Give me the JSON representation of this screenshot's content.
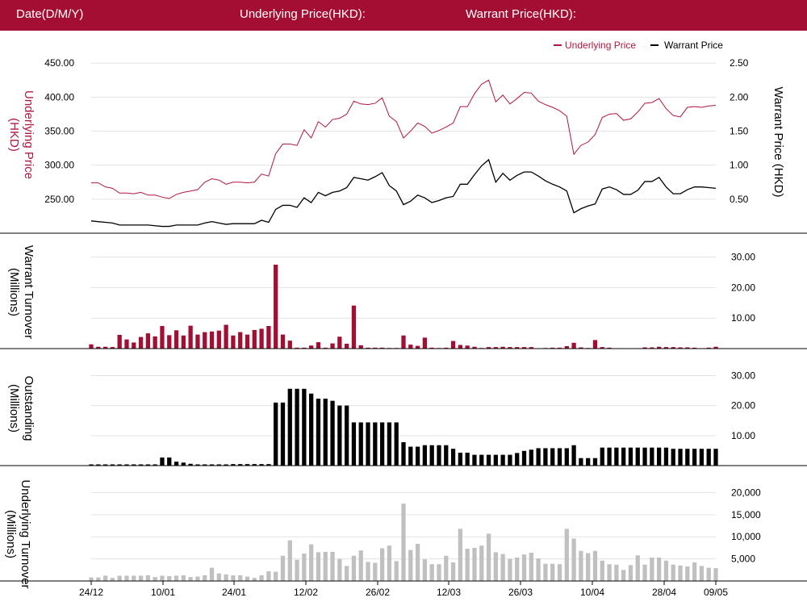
{
  "header": {
    "date_label": "Date(D/M/Y)",
    "underlying_label": "Underlying Price(HKD):",
    "warrant_label": "Warrant Price(HKD):"
  },
  "colors": {
    "brand": "#a50e33",
    "underlying": "#b0163e",
    "warrant": "#000000",
    "turnover_bar": "#a50e33",
    "outstanding_bar": "#000000",
    "underlying_turnover_bar": "#c0c0c0",
    "grid": "#e3e3e3"
  },
  "chart_data": [
    {
      "type": "line",
      "legend": [
        "Underlying Price",
        "Warrant Price"
      ],
      "legend_position": "top-right",
      "ylabel": "Underlying Price (HKD)",
      "y2label": "Warrant  Price (HKD)",
      "ylim": [
        200,
        455
      ],
      "y2lim": [
        0,
        2.55
      ],
      "yticks": [
        "250.00",
        "300.00",
        "350.00",
        "400.00",
        "450.00"
      ],
      "y2ticks": [
        "0.50",
        "1.00",
        "1.50",
        "2.00",
        "2.50"
      ],
      "series": [
        {
          "name": "Underlying Price",
          "values": [
            274,
            274,
            268,
            266,
            259,
            259,
            258,
            260,
            256,
            256,
            253,
            251,
            257,
            260,
            262,
            264,
            275,
            280,
            278,
            272,
            275,
            275,
            274,
            275,
            287,
            284,
            317,
            331,
            331,
            329,
            352,
            340,
            364,
            356,
            367,
            369,
            375,
            394,
            390,
            389,
            391,
            399,
            372,
            364,
            340,
            350,
            362,
            357,
            347,
            351,
            356,
            362,
            386,
            386,
            405,
            419,
            425,
            393,
            403,
            390,
            398,
            407,
            406,
            394,
            389,
            385,
            380,
            372,
            316,
            329,
            334,
            345,
            370,
            375,
            376,
            366,
            368,
            378,
            391,
            392,
            398,
            383,
            373,
            371,
            385,
            386,
            385,
            387,
            388
          ]
        },
        {
          "name": "Warrant Price",
          "values": [
            0.18,
            0.17,
            0.16,
            0.15,
            0.12,
            0.12,
            0.12,
            0.12,
            0.12,
            0.11,
            0.1,
            0.1,
            0.12,
            0.12,
            0.12,
            0.12,
            0.15,
            0.17,
            0.15,
            0.13,
            0.14,
            0.14,
            0.14,
            0.14,
            0.19,
            0.16,
            0.35,
            0.41,
            0.41,
            0.38,
            0.52,
            0.45,
            0.6,
            0.55,
            0.6,
            0.62,
            0.67,
            0.82,
            0.8,
            0.78,
            0.83,
            0.89,
            0.7,
            0.62,
            0.42,
            0.47,
            0.56,
            0.52,
            0.45,
            0.48,
            0.52,
            0.54,
            0.72,
            0.72,
            0.86,
            0.99,
            1.08,
            0.75,
            0.88,
            0.78,
            0.85,
            0.9,
            0.9,
            0.84,
            0.77,
            0.72,
            0.68,
            0.62,
            0.3,
            0.36,
            0.4,
            0.43,
            0.65,
            0.68,
            0.64,
            0.57,
            0.57,
            0.63,
            0.76,
            0.76,
            0.82,
            0.68,
            0.58,
            0.58,
            0.64,
            0.68,
            0.68,
            0.67,
            0.66
          ]
        }
      ]
    },
    {
      "type": "bar",
      "ylabel": "Warrant  Turnover (Millions)",
      "ylim": [
        0,
        32
      ],
      "yticks": [
        "10.00",
        "20.00",
        "30.00"
      ],
      "series": [
        {
          "values": [
            1.4,
            0.6,
            0.6,
            0.5,
            4.5,
            3.0,
            2.0,
            3.8,
            5.0,
            4.0,
            7.4,
            4.4,
            6.0,
            4.3,
            7.5,
            4.6,
            5.4,
            5.6,
            5.9,
            7.8,
            4.3,
            5.4,
            4.6,
            6.1,
            6.5,
            7.4,
            27.5,
            4.6,
            2.6,
            0.3,
            0.3,
            1.0,
            2.1,
            0.3,
            1.7,
            3.9,
            1.6,
            14.1,
            1.1,
            0.3,
            0.3,
            0.3,
            0.2,
            0.2,
            4.3,
            1.3,
            0.9,
            3.6,
            0.3,
            0.2,
            0.3,
            2.5,
            1.2,
            1.0,
            0.6,
            0.2,
            0.5,
            0.5,
            0.6,
            0.5,
            0.5,
            0.5,
            0.5,
            0.1,
            0.2,
            0.3,
            0.3,
            0.8,
            1.9,
            0.4,
            0.2,
            2.8,
            0.5,
            0.3,
            0.1,
            0.1,
            0.1,
            0.1,
            0.4,
            0.4,
            0.6,
            0.5,
            0.5,
            0.4,
            0.4,
            0.3,
            0.1,
            0.3,
            0.6
          ]
        }
      ]
    },
    {
      "type": "bar",
      "ylabel": "Outstanding (Millions)",
      "ylim": [
        0,
        32
      ],
      "yticks": [
        "10.00",
        "20.00",
        "30.00"
      ],
      "series": [
        {
          "values": [
            0.4,
            0.4,
            0.4,
            0.4,
            0.4,
            0.4,
            0.4,
            0.4,
            0.4,
            0.4,
            2.7,
            2.7,
            1.3,
            1.0,
            0.6,
            0.4,
            0.4,
            0.4,
            0.4,
            0.4,
            0.5,
            0.5,
            0.5,
            0.5,
            0.5,
            0.5,
            21.0,
            21.0,
            25.6,
            25.6,
            25.6,
            24.0,
            22.3,
            22.3,
            21.6,
            20.0,
            20.0,
            14.4,
            14.4,
            14.4,
            14.4,
            14.4,
            14.4,
            14.4,
            7.8,
            6.3,
            6.3,
            6.8,
            6.8,
            6.8,
            6.8,
            5.6,
            4.3,
            4.3,
            3.6,
            3.6,
            3.6,
            3.6,
            3.6,
            3.6,
            4.2,
            4.9,
            5.3,
            5.8,
            5.8,
            5.8,
            5.8,
            5.8,
            6.8,
            2.5,
            2.5,
            2.5,
            6.0,
            6.0,
            6.0,
            6.0,
            6.0,
            6.0,
            6.0,
            6.0,
            6.0,
            6.0,
            5.6,
            5.6,
            5.6,
            5.6,
            5.6,
            5.6,
            5.6
          ]
        }
      ]
    },
    {
      "type": "bar",
      "ylabel": "Underlying Turnover (Millions)",
      "ylim": [
        0,
        23000
      ],
      "yticks": [
        "5,000",
        "10,000",
        "15,000",
        "20,000"
      ],
      "xticks": [
        "24/12",
        "10/01",
        "24/01",
        "12/02",
        "26/02",
        "12/03",
        "26/03",
        "10/04",
        "28/04",
        "09/05"
      ],
      "series": [
        {
          "values": [
            800,
            800,
            1200,
            700,
            1200,
            1200,
            1200,
            1200,
            1300,
            900,
            1200,
            1100,
            1200,
            1300,
            900,
            1000,
            1300,
            3000,
            1700,
            1500,
            1300,
            1300,
            1000,
            700,
            1300,
            2200,
            2100,
            5700,
            9200,
            4800,
            6200,
            8300,
            6500,
            6600,
            6600,
            5000,
            3400,
            5700,
            6900,
            4300,
            4100,
            7400,
            8000,
            4500,
            17500,
            7000,
            8400,
            4900,
            3800,
            3800,
            5700,
            4200,
            11800,
            7300,
            7500,
            8000,
            10700,
            6500,
            6100,
            5000,
            5300,
            6000,
            6400,
            5100,
            3900,
            3900,
            3800,
            11800,
            9600,
            6800,
            6300,
            6800,
            4600,
            3800,
            3700,
            2500,
            3600,
            5800,
            3700,
            5300,
            5300,
            4600,
            3700,
            3500,
            3300,
            4200,
            3400,
            3000,
            2900
          ]
        }
      ]
    }
  ]
}
